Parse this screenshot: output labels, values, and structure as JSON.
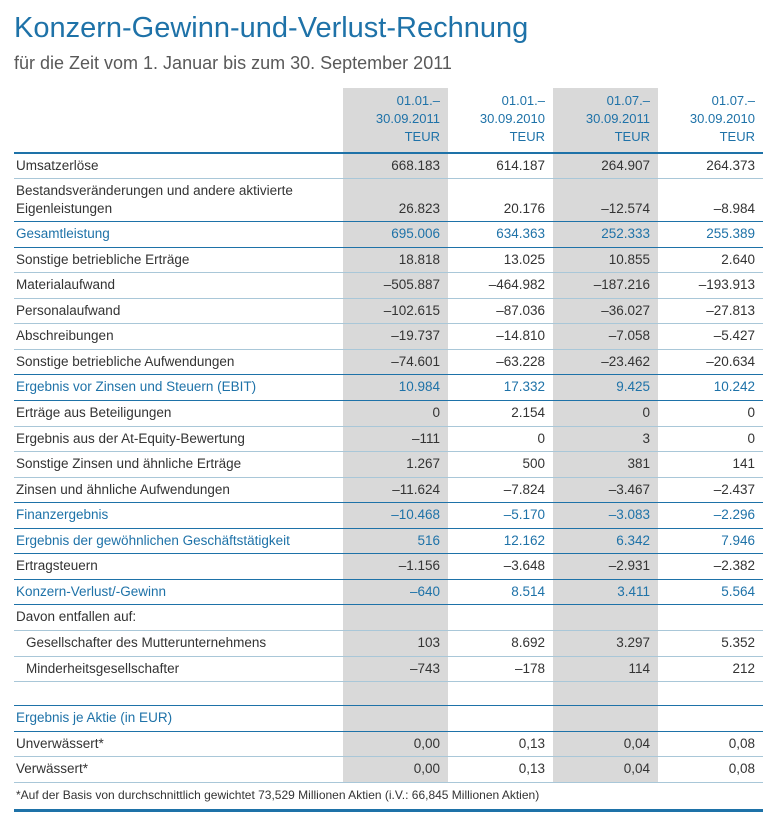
{
  "title": "Konzern-Gewinn-und-Verlust-Rechnung",
  "subtitle": "für die Zeit vom 1. Januar bis zum 30. September 2011",
  "colors": {
    "accent_blue": "#1e72a8",
    "shaded_column": "#d9d9d9",
    "separator": "#a9c7d8"
  },
  "table": {
    "columns": [
      {
        "period": "01.01.–",
        "end": "30.09.2011",
        "unit": "TEUR",
        "shaded": true
      },
      {
        "period": "01.01.–",
        "end": "30.09.2010",
        "unit": "TEUR",
        "shaded": false
      },
      {
        "period": "01.07.–",
        "end": "30.09.2011",
        "unit": "TEUR",
        "shaded": true
      },
      {
        "period": "01.07.–",
        "end": "30.09.2010",
        "unit": "TEUR",
        "shaded": false
      }
    ],
    "rows": [
      {
        "label": "Umsatzerlöse",
        "values": [
          "668.183",
          "614.187",
          "264.907",
          "264.373"
        ]
      },
      {
        "label": "Bestandsveränderungen und andere aktivierte Eigenleistungen",
        "values": [
          "26.823",
          "20.176",
          "–12.574",
          "–8.984"
        ]
      },
      {
        "label": "Gesamtleistung",
        "values": [
          "695.006",
          "634.363",
          "252.333",
          "255.389"
        ],
        "highlight": true
      },
      {
        "label": "Sonstige betriebliche Erträge",
        "values": [
          "18.818",
          "13.025",
          "10.855",
          "2.640"
        ]
      },
      {
        "label": "Materialaufwand",
        "values": [
          "–505.887",
          "–464.982",
          "–187.216",
          "–193.913"
        ]
      },
      {
        "label": "Personalaufwand",
        "values": [
          "–102.615",
          "–87.036",
          "–36.027",
          "–27.813"
        ]
      },
      {
        "label": "Abschreibungen",
        "values": [
          "–19.737",
          "–14.810",
          "–7.058",
          "–5.427"
        ]
      },
      {
        "label": "Sonstige betriebliche Aufwendungen",
        "values": [
          "–74.601",
          "–63.228",
          "–23.462",
          "–20.634"
        ]
      },
      {
        "label": "Ergebnis vor Zinsen und Steuern (EBIT)",
        "values": [
          "10.984",
          "17.332",
          "9.425",
          "10.242"
        ],
        "highlight": true
      },
      {
        "label": "Erträge aus Beteiligungen",
        "values": [
          "0",
          "2.154",
          "0",
          "0"
        ]
      },
      {
        "label": "Ergebnis aus der At-Equity-Bewertung",
        "values": [
          "–111",
          "0",
          "3",
          "0"
        ]
      },
      {
        "label": "Sonstige Zinsen und ähnliche Erträge",
        "values": [
          "1.267",
          "500",
          "381",
          "141"
        ]
      },
      {
        "label": "Zinsen und ähnliche Aufwendungen",
        "values": [
          "–11.624",
          "–7.824",
          "–3.467",
          "–2.437"
        ]
      },
      {
        "label": "Finanzergebnis",
        "values": [
          "–10.468",
          "–5.170",
          "–3.083",
          "–2.296"
        ],
        "highlight": true
      },
      {
        "label": "Ergebnis der gewöhnlichen Geschäftstätigkeit",
        "values": [
          "516",
          "12.162",
          "6.342",
          "7.946"
        ],
        "highlight": true
      },
      {
        "label": "Ertragsteuern",
        "values": [
          "–1.156",
          "–3.648",
          "–2.931",
          "–2.382"
        ]
      },
      {
        "label": "Konzern-Verlust/-Gewinn",
        "values": [
          "–640",
          "8.514",
          "3.411",
          "5.564"
        ],
        "highlight": true
      },
      {
        "label": "Davon entfallen auf:",
        "values": [
          "",
          "",
          "",
          ""
        ]
      },
      {
        "label": "Gesellschafter des Mutterunternehmens",
        "values": [
          "103",
          "8.692",
          "3.297",
          "5.352"
        ],
        "indent": true
      },
      {
        "label": "Minderheitsgesellschafter",
        "values": [
          "–743",
          "–178",
          "114",
          "212"
        ],
        "indent": true
      },
      {
        "label": "",
        "values": [
          "",
          "",
          "",
          ""
        ],
        "spacer": true
      },
      {
        "label": "Ergebnis je Aktie (in EUR)",
        "values": [
          "",
          "",
          "",
          ""
        ],
        "highlight": true
      },
      {
        "label": "Unverwässert*",
        "values": [
          "0,00",
          "0,13",
          "0,04",
          "0,08"
        ]
      },
      {
        "label": "Verwässert*",
        "values": [
          "0,00",
          "0,13",
          "0,04",
          "0,08"
        ]
      }
    ]
  },
  "footnote": "*Auf der Basis von durchschnittlich gewichtet 73,529 Millionen Aktien (i.V.: 66,845 Millionen Aktien)"
}
